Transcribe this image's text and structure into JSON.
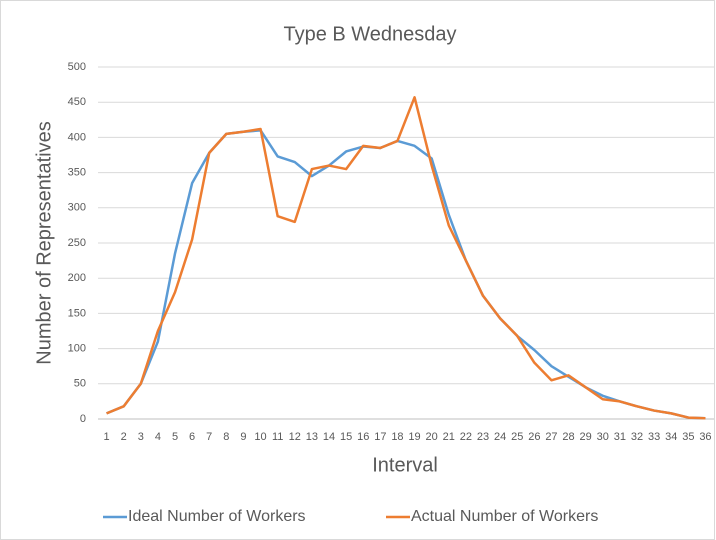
{
  "chart_data": {
    "type": "line",
    "title": "Type B Wednesday",
    "x_label": "Interval",
    "y_label": "Number of Representatives",
    "categories": [
      "1",
      "2",
      "3",
      "4",
      "5",
      "6",
      "7",
      "8",
      "9",
      "10",
      "11",
      "12",
      "13",
      "14",
      "15",
      "16",
      "17",
      "18",
      "19",
      "20",
      "21",
      "22",
      "23",
      "24",
      "25",
      "26",
      "27",
      "28",
      "29",
      "30",
      "31",
      "32",
      "33",
      "34",
      "35",
      "36"
    ],
    "series": [
      {
        "name": "Ideal Number of Workers",
        "color": "#5b9bd5",
        "values": [
          8,
          18,
          50,
          110,
          235,
          335,
          378,
          405,
          408,
          410,
          373,
          365,
          345,
          360,
          380,
          387,
          385,
          395,
          388,
          370,
          290,
          225,
          175,
          143,
          118,
          98,
          75,
          60,
          45,
          33,
          25,
          18,
          12,
          8,
          2,
          1
        ]
      },
      {
        "name": "Actual Number of Workers",
        "color": "#ed7d31",
        "values": [
          8,
          18,
          50,
          125,
          180,
          255,
          378,
          405,
          408,
          412,
          288,
          280,
          355,
          360,
          355,
          388,
          385,
          395,
          457,
          360,
          275,
          225,
          175,
          143,
          118,
          80,
          55,
          62,
          45,
          28,
          25,
          18,
          12,
          8,
          2,
          1
        ]
      }
    ],
    "ylim": [
      0,
      500
    ],
    "yticks": [
      0,
      50,
      100,
      150,
      200,
      250,
      300,
      350,
      400,
      450,
      500
    ],
    "grid": true,
    "legend": "bottom"
  }
}
